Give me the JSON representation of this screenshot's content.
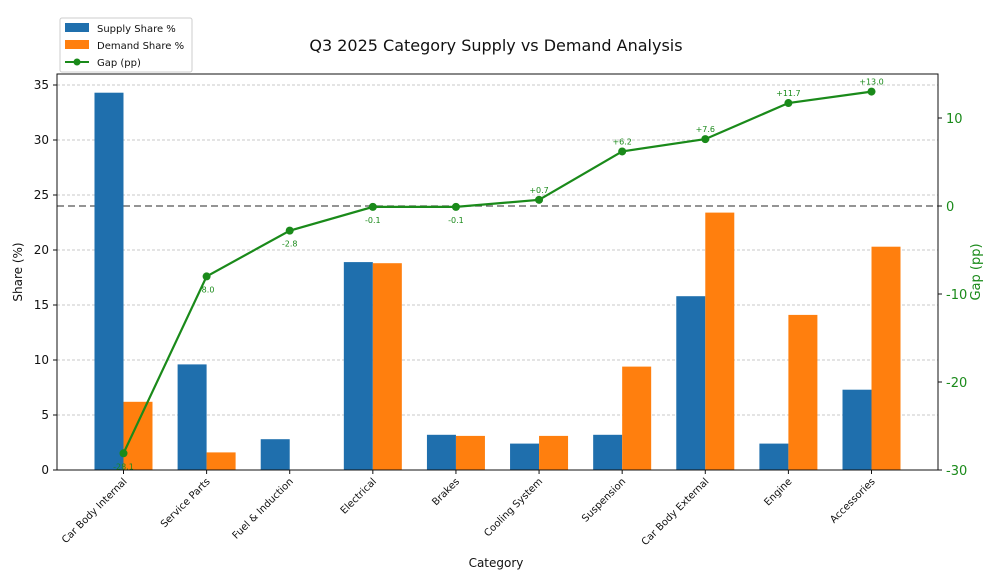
{
  "chart_data": {
    "type": "bar",
    "title": "Q3 2025 Category Supply vs Demand Analysis",
    "xlabel": "Category",
    "ylabel": "Share (%)",
    "y2label": "Gap (pp)",
    "ylim": [
      0,
      36
    ],
    "y2lim": [
      -30,
      15
    ],
    "yticks": [
      0,
      5,
      10,
      15,
      20,
      25,
      30,
      35
    ],
    "y2ticks": [
      -30,
      -20,
      -10,
      0,
      10
    ],
    "grid": true,
    "legend_position": "top-left",
    "categories": [
      "Car Body Internal",
      "Service Parts",
      "Fuel & Induction",
      "Electrical",
      "Brakes",
      "Cooling System",
      "Suspension",
      "Car Body External",
      "Engine",
      "Accessories"
    ],
    "series": [
      {
        "name": "Supply Share %",
        "type": "bar",
        "axis": "left",
        "color": "#1f6fad",
        "values": [
          34.3,
          9.6,
          2.8,
          18.9,
          3.2,
          2.4,
          3.2,
          15.8,
          2.4,
          7.3
        ]
      },
      {
        "name": "Demand Share %",
        "type": "bar",
        "axis": "left",
        "color": "#ff7f0e",
        "values": [
          6.2,
          1.6,
          0.0,
          18.8,
          3.1,
          3.1,
          9.4,
          23.4,
          14.1,
          20.3
        ]
      },
      {
        "name": "Gap (pp)",
        "type": "line",
        "axis": "right",
        "color": "#1a8a1a",
        "values": [
          -28.1,
          -8.0,
          -2.8,
          -0.1,
          -0.1,
          0.7,
          6.2,
          7.6,
          11.7,
          13.0
        ],
        "labels": [
          "-28.1",
          "-8.0",
          "-2.8",
          "-0.1",
          "-0.1",
          "+0.7",
          "+6.2",
          "+7.6",
          "+11.7",
          "+13.0"
        ]
      }
    ],
    "reference_line": {
      "axis": "right",
      "value": 0,
      "style": "dashed"
    }
  }
}
